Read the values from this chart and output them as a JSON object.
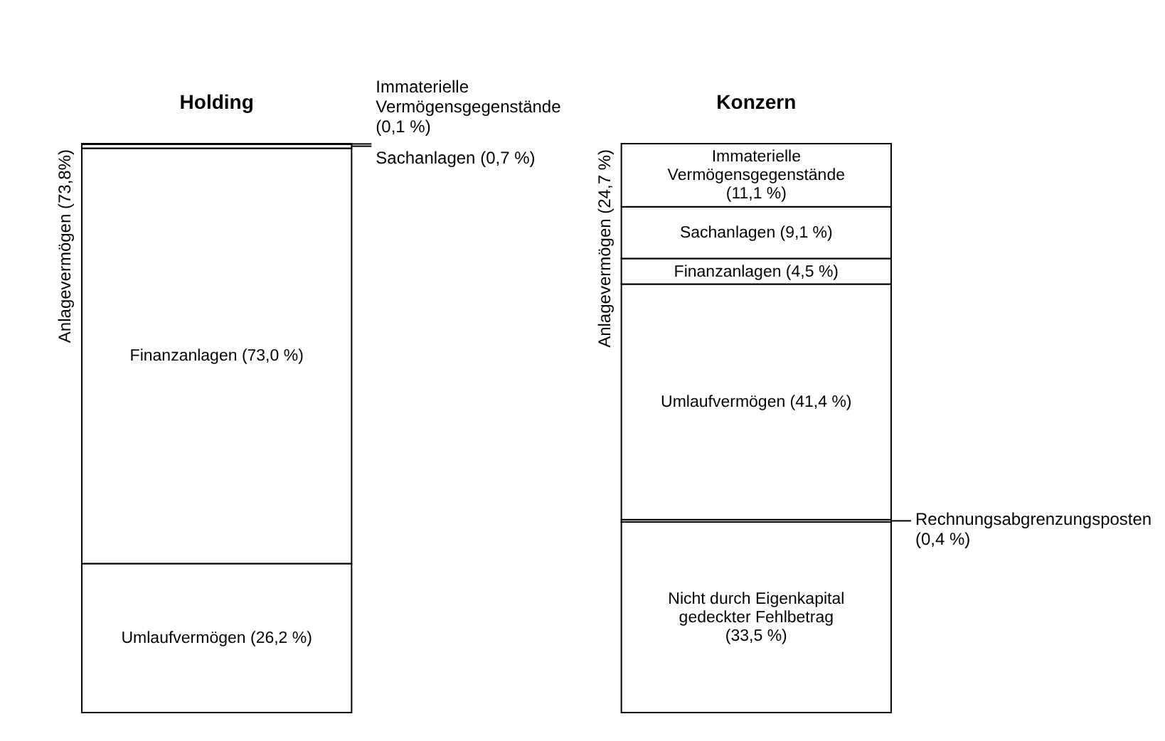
{
  "chart_data": {
    "type": "bar",
    "stacked": true,
    "categories": [
      "Holding",
      "Konzern"
    ],
    "series": [
      {
        "color": "#ffffff",
        "values": [
          null,
          33.5
        ],
        "value_labels": [
          null,
          "Nicht durch Eigenkapital gedeckter Fehlbetrag (33,5 %)"
        ]
      },
      {
        "color": "#ffffff",
        "values": [
          null,
          0.4
        ],
        "value_labels": [
          null,
          "Rechnungsabgrenzungsposten (0,4 %)"
        ]
      },
      {
        "color": "#ffffff",
        "values": [
          26.2,
          41.4
        ],
        "value_labels": [
          "Umlaufvermögen (26,2 %)",
          "Umlaufvermögen (41,4 %)"
        ]
      },
      {
        "color": "#ffffff",
        "values": [
          73.0,
          4.5
        ],
        "value_labels": [
          "Finanzanlagen (73,0 %)",
          "Finanzanlagen (4,5 %)"
        ]
      },
      {
        "color": "#ffffff",
        "values": [
          0.7,
          9.1
        ],
        "value_labels": [
          "Sachanlagen (0,7 %)",
          "Sachanlagen (9,1 %)"
        ]
      },
      {
        "color": "#ffffff",
        "values": [
          0.1,
          11.1
        ],
        "value_labels": [
          "Immaterielle Vermögensgegenstände (0,1 %)",
          "Immaterielle Vermögensgegenstände (11,1 %)"
        ]
      }
    ],
    "annotations": [
      "Anlagevermögen (73,8%)",
      "Anlagevermögen (24,7 %)"
    ]
  }
}
